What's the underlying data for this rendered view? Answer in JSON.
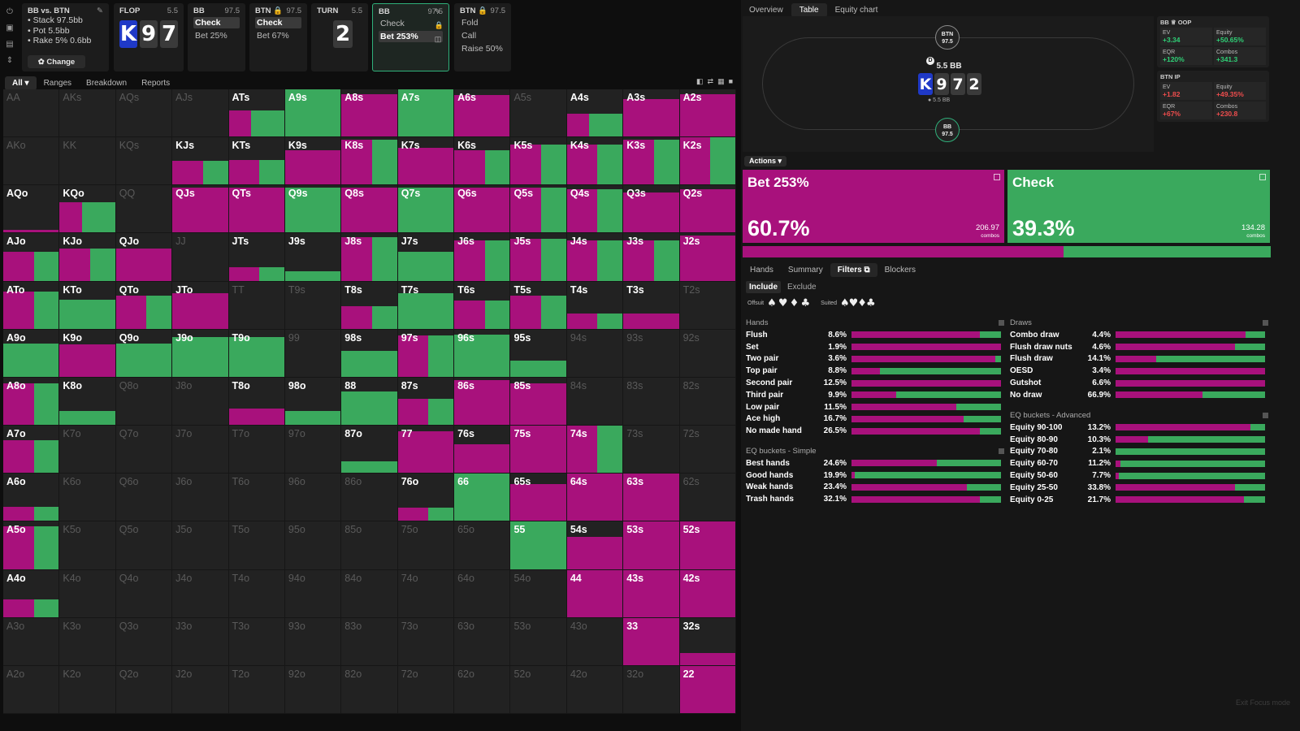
{
  "colors": {
    "bet": "#a8117c",
    "check": "#3aa95d",
    "panel": "#1c1c1c"
  },
  "sidebar_icons": [
    "power-icon",
    "save-icon",
    "cards-icon",
    "sort-icon"
  ],
  "info": {
    "title": "BB vs. BTN",
    "lines": [
      "• Stack 97.5bb",
      "• Pot 5.5bb",
      "• Rake 5% 0.6bb"
    ],
    "change": "✿ Change"
  },
  "street_cards": [
    {
      "name": "flop-card",
      "hd": "FLOP",
      "val": "5.5",
      "cards": [
        "K",
        "9",
        "7"
      ],
      "blue": [
        true,
        false,
        false
      ]
    },
    {
      "name": "bb-card",
      "hd": "BB",
      "val": "97.5",
      "acts": [
        "Check",
        "Bet 25%"
      ],
      "sel": 0
    },
    {
      "name": "btn-card",
      "hd": "BTN 🔒",
      "val": "97.5",
      "acts": [
        "Check",
        "Bet 67%"
      ],
      "sel": 0
    },
    {
      "name": "turn-card",
      "hd": "TURN",
      "val": "5.5",
      "cards": [
        "2"
      ],
      "blue": [
        false
      ]
    },
    {
      "name": "bb-active-card",
      "hd": "BB",
      "val": "97.5",
      "acts": [
        "Check",
        "Bet 253%"
      ],
      "sel": 1,
      "active": true
    },
    {
      "name": "btn-next-card",
      "hd": "BTN 🔒",
      "val": "97.5",
      "acts": [
        "Fold",
        "Call",
        "Raise 50%"
      ],
      "sel": -1
    }
  ],
  "tabs": [
    "All ▾",
    "Ranges",
    "Breakdown",
    "Reports"
  ],
  "grid": [
    [
      "AA:-",
      "AKs:-",
      "AQs:-",
      "AJs:-",
      "ATs:c2,b1,p55",
      "A9s:c3,p100",
      "A8s:b1,p90",
      "A7s:c2,p100",
      "A6s:b1,p88",
      "A5s:-",
      "A4s:c3,b1,p48",
      "A3s:b1,p80",
      "A2s:b1,p90"
    ],
    [
      "AKo:-",
      "KK:-",
      "KQs:-",
      "KJs:c1,b1,p50",
      "KTs:c1,b1,p52",
      "K9s:b1,p72",
      "K8s:c1,b1,p95",
      "K7s:b1,p78",
      "K6s:c1,b1,p72",
      "K5s:c1,b1,p85",
      "K4s:c1,b1,p85",
      "K3s:c1,b1,p95",
      "K2s:c1,b1,p100"
    ],
    [
      "AQo:b1,p6",
      "KQo:c3,b1,p65",
      "QQ:-",
      "QJs:b1,p95",
      "QTs:b1,p95",
      "Q9s:c2,p95",
      "Q8s:b1,p95",
      "Q7s:c2,p95",
      "Q6s:b1,p95",
      "Q5s:c1,b1,p95",
      "Q4s:c1,b1,p92",
      "Q3s:b1,p85",
      "Q2s:b1,p92"
    ],
    [
      "AJo:c1,b1,p62",
      "KJo:c1,b1,p68",
      "QJo:b1,p68",
      "JJ:-",
      "JTs:c1,b1,p28",
      "J9s:c1,p20",
      "J8s:c1,b1,p92",
      "J7s:c2,p62",
      "J6s:c1,b1,p85",
      "J5s:c1,b1,p88",
      "J4s:c1,b1,p85",
      "J3s:c1,b1,p85",
      "J2s:b1,p95"
    ],
    [
      "ATo:c1,b1,p78",
      "KTo:c2,p62",
      "QTo:c1,b1,p70",
      "JTo:b1,p75",
      "TT:-",
      "T9s:-",
      "T8s:c1,b1,p48",
      "T7s:c2,p75",
      "T6s:c1,b1,p60",
      "T5s:c1,b1,p70",
      "T4s:c1,b1,p32",
      "T3s:b1,p32",
      "T2s:-"
    ],
    [
      "A9o:c2,p70",
      "K9o:b1,p68",
      "Q9o:c2,p70",
      "J9o:c2,p85",
      "T9o:c2,p85",
      "99:-",
      "98s:c2,p55",
      "97s:c1,b1,p88",
      "96s:c1,c2,p90",
      "95s:c2,p35",
      "94s:-",
      "93s:-",
      "92s:-"
    ],
    [
      "A8o:c1,b1,p88",
      "K8o:c2,p30",
      "Q8o:-",
      "J8o:-",
      "T8o:b1,p35",
      "98o:c2,p30",
      "88:c2,p70",
      "87s:c1,b1,p55",
      "86s:b1,p95",
      "85s:b1,p88",
      "84s:-",
      "83s:-",
      "82s:-"
    ],
    [
      "A7o:c1,b1,p70",
      "K7o:-",
      "Q7o:-",
      "J7o:-",
      "T7o:-",
      "97o:-",
      "87o:c2,p25",
      "77:b1,p88",
      "76s:b1,p60",
      "75s:b1,p100",
      "74s:c1,b1,p100",
      "73s:-",
      "72s:-"
    ],
    [
      "A6o:c1,b1,p30",
      "K6o:-",
      "Q6o:-",
      "J6o:-",
      "T6o:-",
      "96o:-",
      "86o:-",
      "76o:c1,b1,p28",
      "66:c2,p100",
      "65s:b1,p78",
      "64s:b1,p100",
      "63s:b1,p100",
      "62s:-"
    ],
    [
      "A5o:c1,b1,p90",
      "K5o:-",
      "Q5o:-",
      "J5o:-",
      "T5o:-",
      "95o:-",
      "85o:-",
      "75o:-",
      "65o:-",
      "55:c2,p100",
      "54s:b1,p68",
      "53s:b1,p100",
      "52s:b1,p100"
    ],
    [
      "A4o:c1,b1,p38",
      "K4o:-",
      "Q4o:-",
      "J4o:-",
      "T4o:-",
      "94o:-",
      "84o:-",
      "74o:-",
      "64o:-",
      "54o:-",
      "44:b1,p100",
      "43s:b1,p100",
      "42s:b1,p100"
    ],
    [
      "A3o:-",
      "K3o:-",
      "Q3o:-",
      "J3o:-",
      "T3o:-",
      "93o:-",
      "83o:-",
      "73o:-",
      "63o:-",
      "53o:-",
      "43o:-",
      "33:b1,p100",
      "32s:b1,p25"
    ],
    [
      "A2o:-",
      "K2o:-",
      "Q2o:-",
      "J2o:-",
      "T2o:-",
      "92o:-",
      "82o:-",
      "72o:-",
      "62o:-",
      "52o:-",
      "42o:-",
      "32o:-",
      "22:b1,p100"
    ]
  ],
  "right_tabs": [
    "Overview",
    "Table",
    "Equity chart"
  ],
  "table": {
    "btn_seat": "BTN\n97.5",
    "bb_seat": "BB\n97.5",
    "pot": "5.5 BB",
    "cards": [
      "K",
      "9",
      "7",
      "2"
    ],
    "pot_sub": "● 5.5 BB",
    "dealer": "D"
  },
  "stats": [
    {
      "title": "BB ♕ OOP",
      "cells": [
        [
          "EV",
          "+3.34",
          "pos"
        ],
        [
          "Equity",
          "+50.65%",
          "pos"
        ],
        [
          "EQR",
          "+120%",
          "pos"
        ],
        [
          "Combos",
          "+341.3",
          "pos"
        ]
      ]
    },
    {
      "title": "BTN IP",
      "cells": [
        [
          "EV",
          "+1.82",
          "neg"
        ],
        [
          "Equity",
          "+49.35%",
          "neg"
        ],
        [
          "EQR",
          "+67%",
          "neg"
        ],
        [
          "Combos",
          "+230.8",
          "neg"
        ]
      ]
    }
  ],
  "actions_label": "Actions ▾",
  "actions": [
    {
      "name": "Bet 253%",
      "pct": "60.7%",
      "combos": "206.97",
      "freq": 60.7,
      "color": "#a8117c"
    },
    {
      "name": "Check",
      "pct": "39.3%",
      "combos": "134.28",
      "freq": 39.3,
      "color": "#3aa95d"
    }
  ],
  "combos_word": "combos",
  "bottom_tabs": [
    "Hands",
    "Summary",
    "Filters ⧉",
    "Blockers"
  ],
  "include": [
    "Include",
    "Exclude"
  ],
  "suits": {
    "offsuit": "Offsuit",
    "offsuit_syms": "♠ ♥ ♦ ♣",
    "suited": "Suited",
    "suited_syms": "♠♥♦♣"
  },
  "hands": {
    "title": "Hands",
    "rows": [
      [
        "Flush",
        "8.6%",
        86
      ],
      [
        "Set",
        "1.9%",
        100
      ],
      [
        "Two pair",
        "3.6%",
        96
      ],
      [
        "Top pair",
        "8.8%",
        19
      ],
      [
        "Second pair",
        "12.5%",
        100
      ],
      [
        "Third pair",
        "9.9%",
        30
      ],
      [
        "Low pair",
        "11.5%",
        70
      ],
      [
        "Ace high",
        "16.7%",
        75
      ],
      [
        "No made hand",
        "26.5%",
        86
      ]
    ]
  },
  "eq_simple": {
    "title": "EQ buckets - Simple",
    "rows": [
      [
        "Best hands",
        "24.6%",
        57
      ],
      [
        "Good hands",
        "19.9%",
        2
      ],
      [
        "Weak hands",
        "23.4%",
        77
      ],
      [
        "Trash hands",
        "32.1%",
        86
      ]
    ]
  },
  "draws": {
    "title": "Draws",
    "rows": [
      [
        "Combo draw",
        "4.4%",
        87
      ],
      [
        "Flush draw nuts",
        "4.6%",
        80
      ],
      [
        "Flush draw",
        "14.1%",
        27
      ],
      [
        "OESD",
        "3.4%",
        100
      ],
      [
        "Gutshot",
        "6.6%",
        100
      ],
      [
        "No draw",
        "66.9%",
        58
      ]
    ]
  },
  "eq_adv": {
    "title": "EQ buckets - Advanced",
    "rows": [
      [
        "Equity 90-100",
        "13.2%",
        90
      ],
      [
        "Equity 80-90",
        "10.3%",
        22
      ],
      [
        "Equity 70-80",
        "2.1%",
        0
      ],
      [
        "Equity 60-70",
        "11.2%",
        3
      ],
      [
        "Equity 50-60",
        "7.7%",
        2
      ],
      [
        "Equity 25-50",
        "33.8%",
        80
      ],
      [
        "Equity 0-25",
        "21.7%",
        86
      ]
    ]
  },
  "exit": "Exit Focus mode"
}
